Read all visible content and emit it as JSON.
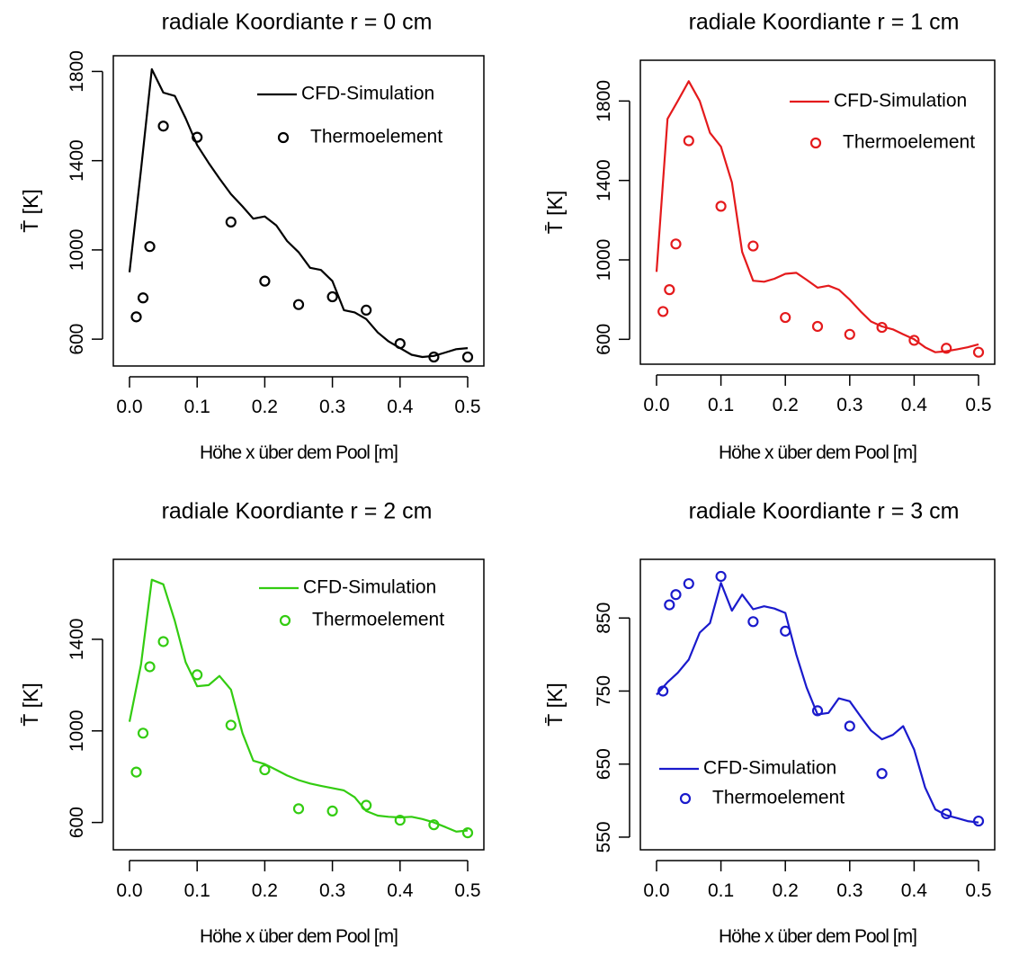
{
  "chart_data": [
    {
      "type": "line",
      "title": "radiale Koordiante r = 0 cm",
      "xlabel": "Höhe x über dem Pool   [m]",
      "ylabel": "T̄  [K]",
      "xlim": [
        0,
        0.5
      ],
      "ylim": [
        520,
        1830
      ],
      "xticks": [
        "0.0",
        "0.1",
        "0.2",
        "0.3",
        "0.4",
        "0.5"
      ],
      "yticks": [
        "600",
        "1000",
        "1400",
        "1800"
      ],
      "color": "#000000",
      "legend_position": "top-right",
      "series": [
        {
          "name": "CFD-Simulation",
          "kind": "line",
          "x": [
            0,
            0.017,
            0.033,
            0.05,
            0.067,
            0.083,
            0.1,
            0.117,
            0.133,
            0.15,
            0.167,
            0.183,
            0.2,
            0.217,
            0.233,
            0.25,
            0.267,
            0.283,
            0.3,
            0.317,
            0.333,
            0.35,
            0.367,
            0.383,
            0.4,
            0.417,
            0.433,
            0.45,
            0.467,
            0.483,
            0.5
          ],
          "y": [
            900,
            1360,
            1810,
            1705,
            1690,
            1590,
            1470,
            1390,
            1320,
            1250,
            1195,
            1140,
            1150,
            1110,
            1040,
            990,
            920,
            910,
            860,
            730,
            720,
            690,
            630,
            590,
            560,
            530,
            520,
            525,
            540,
            555,
            560
          ]
        },
        {
          "name": "Thermoelement",
          "kind": "points",
          "x": [
            0.01,
            0.02,
            0.03,
            0.05,
            0.1,
            0.15,
            0.2,
            0.25,
            0.3,
            0.35,
            0.4,
            0.45,
            0.5
          ],
          "y": [
            700,
            785,
            1015,
            1555,
            1505,
            1125,
            860,
            755,
            790,
            730,
            580,
            520,
            520
          ]
        }
      ]
    },
    {
      "type": "line",
      "title": "radiale Koordiante r = 1 cm",
      "xlabel": "Höhe x über dem Pool   [m]",
      "ylabel": "T̄  [K]",
      "xlim": [
        0,
        0.5
      ],
      "ylim": [
        520,
        1960
      ],
      "xticks": [
        "0.0",
        "0.1",
        "0.2",
        "0.3",
        "0.4",
        "0.5"
      ],
      "yticks": [
        "600",
        "1000",
        "1400",
        "1800"
      ],
      "color": "#e41a1c",
      "legend_position": "top-right",
      "series": [
        {
          "name": "CFD-Simulation",
          "kind": "line",
          "x": [
            0,
            0.017,
            0.033,
            0.05,
            0.067,
            0.083,
            0.1,
            0.117,
            0.133,
            0.15,
            0.167,
            0.183,
            0.2,
            0.217,
            0.233,
            0.25,
            0.267,
            0.283,
            0.3,
            0.317,
            0.333,
            0.35,
            0.367,
            0.383,
            0.4,
            0.417,
            0.433,
            0.45,
            0.467,
            0.483,
            0.5
          ],
          "y": [
            940,
            1710,
            1800,
            1900,
            1800,
            1640,
            1570,
            1390,
            1040,
            895,
            890,
            905,
            930,
            935,
            900,
            860,
            870,
            850,
            800,
            740,
            690,
            665,
            650,
            625,
            600,
            560,
            535,
            540,
            550,
            560,
            575
          ]
        },
        {
          "name": "Thermoelement",
          "kind": "points",
          "x": [
            0.01,
            0.02,
            0.03,
            0.05,
            0.1,
            0.15,
            0.2,
            0.25,
            0.3,
            0.35,
            0.4,
            0.45,
            0.5
          ],
          "y": [
            740,
            850,
            1080,
            1600,
            1270,
            1070,
            710,
            665,
            625,
            660,
            595,
            555,
            535
          ]
        }
      ]
    },
    {
      "type": "line",
      "title": "radiale Koordiante r = 2 cm",
      "xlabel": "Höhe x über dem Pool   [m]",
      "ylabel": "T̄  [K]",
      "xlim": [
        0,
        0.5
      ],
      "ylim": [
        520,
        1710
      ],
      "xticks": [
        "0.0",
        "0.1",
        "0.2",
        "0.3",
        "0.4",
        "0.5"
      ],
      "yticks": [
        "600",
        "1000",
        "1400"
      ],
      "color": "#33cc11",
      "legend_position": "top-right",
      "series": [
        {
          "name": "CFD-Simulation",
          "kind": "line",
          "x": [
            0,
            0.017,
            0.033,
            0.05,
            0.067,
            0.083,
            0.1,
            0.117,
            0.133,
            0.15,
            0.167,
            0.183,
            0.2,
            0.217,
            0.233,
            0.25,
            0.267,
            0.283,
            0.3,
            0.317,
            0.333,
            0.35,
            0.367,
            0.383,
            0.4,
            0.417,
            0.433,
            0.45,
            0.467,
            0.483,
            0.5
          ],
          "y": [
            1040,
            1290,
            1660,
            1640,
            1480,
            1300,
            1195,
            1200,
            1240,
            1180,
            990,
            870,
            855,
            830,
            805,
            785,
            770,
            760,
            750,
            740,
            710,
            650,
            630,
            625,
            622,
            625,
            615,
            600,
            580,
            560,
            565
          ]
        },
        {
          "name": "Thermoelement",
          "kind": "points",
          "x": [
            0.01,
            0.02,
            0.03,
            0.05,
            0.1,
            0.15,
            0.2,
            0.25,
            0.3,
            0.35,
            0.4,
            0.45,
            0.5
          ],
          "y": [
            820,
            990,
            1280,
            1390,
            1245,
            1025,
            830,
            660,
            650,
            675,
            610,
            590,
            555
          ]
        }
      ]
    },
    {
      "type": "line",
      "title": "radiale Koordiante r = 3 cm",
      "xlabel": "Höhe x über dem Pool   [m]",
      "ylabel": "T̄  [K]",
      "xlim": [
        0,
        0.5
      ],
      "ylim": [
        545,
        918
      ],
      "xticks": [
        "0.0",
        "0.1",
        "0.2",
        "0.3",
        "0.4",
        "0.5"
      ],
      "yticks": [
        "550",
        "650",
        "750",
        "850"
      ],
      "color": "#1a1acc",
      "legend_position": "bottom-left",
      "series": [
        {
          "name": "CFD-Simulation",
          "kind": "line",
          "x": [
            0,
            0.017,
            0.033,
            0.05,
            0.067,
            0.083,
            0.1,
            0.117,
            0.133,
            0.15,
            0.167,
            0.183,
            0.2,
            0.217,
            0.233,
            0.25,
            0.267,
            0.283,
            0.3,
            0.317,
            0.333,
            0.35,
            0.367,
            0.383,
            0.4,
            0.417,
            0.433,
            0.45,
            0.467,
            0.483,
            0.5
          ],
          "y": [
            745,
            762,
            775,
            793,
            830,
            843,
            898,
            860,
            882,
            862,
            866,
            863,
            857,
            800,
            755,
            718,
            720,
            740,
            736,
            715,
            696,
            684,
            690,
            702,
            670,
            618,
            588,
            580,
            576,
            572,
            570
          ]
        },
        {
          "name": "Thermoelement",
          "kind": "points",
          "x": [
            0.01,
            0.02,
            0.03,
            0.05,
            0.1,
            0.15,
            0.2,
            0.25,
            0.3,
            0.35,
            0.45,
            0.5
          ],
          "y": [
            750,
            868,
            882,
            897,
            907,
            845,
            832,
            723,
            702,
            637,
            582,
            572
          ]
        }
      ]
    }
  ]
}
